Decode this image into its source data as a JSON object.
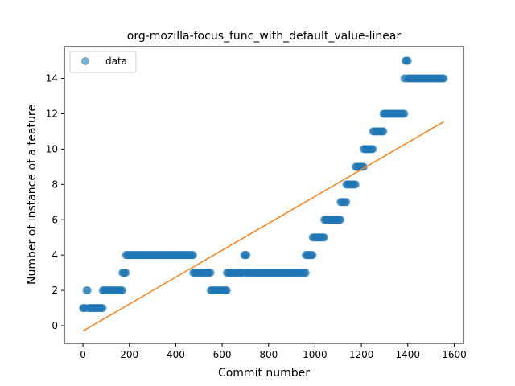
{
  "chart_data": {
    "type": "scatter",
    "title": "org-mozilla-focus_func_with_default_value-linear",
    "xlabel": "Commit number",
    "ylabel": "Number of instance of a feature",
    "xlim": [
      -80,
      1640
    ],
    "ylim": [
      -1.0,
      15.8
    ],
    "xticks": [
      0,
      200,
      400,
      600,
      800,
      1000,
      1200,
      1400,
      1600
    ],
    "yticks": [
      0,
      2,
      4,
      6,
      8,
      10,
      12,
      14
    ],
    "grid": false,
    "legend": {
      "position": "top-left",
      "entries": [
        "data"
      ]
    },
    "colors": {
      "data": "#1f77b4",
      "fit": "#ff7f0e"
    },
    "series": [
      {
        "name": "data",
        "kind": "scatter",
        "segments": [
          {
            "x_start": 0,
            "x_end": 10,
            "y": 1
          },
          {
            "x_start": 15,
            "x_end": 20,
            "y": 2
          },
          {
            "x_start": 25,
            "x_end": 85,
            "y": 1
          },
          {
            "x_start": 85,
            "x_end": 170,
            "y": 2
          },
          {
            "x_start": 170,
            "x_end": 185,
            "y": 3
          },
          {
            "x_start": 185,
            "x_end": 475,
            "y": 4
          },
          {
            "x_start": 475,
            "x_end": 550,
            "y": 3
          },
          {
            "x_start": 550,
            "x_end": 620,
            "y": 2
          },
          {
            "x_start": 620,
            "x_end": 690,
            "y": 3
          },
          {
            "x_start": 695,
            "x_end": 705,
            "y": 4
          },
          {
            "x_start": 700,
            "x_end": 960,
            "y": 3
          },
          {
            "x_start": 960,
            "x_end": 990,
            "y": 4
          },
          {
            "x_start": 990,
            "x_end": 1040,
            "y": 5
          },
          {
            "x_start": 1040,
            "x_end": 1110,
            "y": 6
          },
          {
            "x_start": 1110,
            "x_end": 1135,
            "y": 7
          },
          {
            "x_start": 1135,
            "x_end": 1175,
            "y": 8
          },
          {
            "x_start": 1175,
            "x_end": 1210,
            "y": 9
          },
          {
            "x_start": 1210,
            "x_end": 1250,
            "y": 10
          },
          {
            "x_start": 1250,
            "x_end": 1295,
            "y": 11
          },
          {
            "x_start": 1295,
            "x_end": 1385,
            "y": 12
          },
          {
            "x_start": 1385,
            "x_end": 1390,
            "y": 14
          },
          {
            "x_start": 1390,
            "x_end": 1400,
            "y": 15
          },
          {
            "x_start": 1400,
            "x_end": 1555,
            "y": 14
          }
        ]
      },
      {
        "name": "",
        "kind": "line",
        "x": [
          0,
          1555
        ],
        "y": [
          -0.3,
          11.55
        ]
      }
    ]
  }
}
